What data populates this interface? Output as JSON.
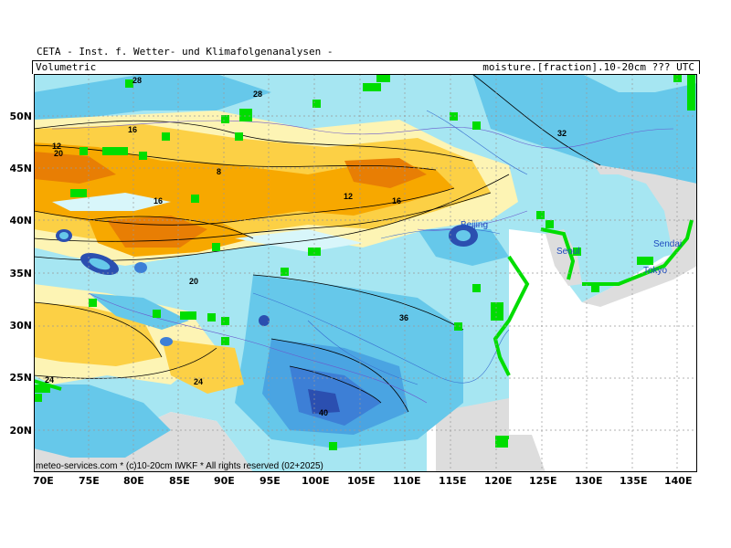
{
  "header": {
    "title": "CETA - Inst. f. Wetter- und Klimafolgenanalysen -",
    "left_label": "Volumetric",
    "right_label": "moisture.[fraction].10-20cm ??? UTC"
  },
  "footer": {
    "copyright": "meteo-services.com * (c)10-20cm IWKF * All rights reserved (02+2025)"
  },
  "axes": {
    "lat_labels": [
      "50N",
      "45N",
      "40N",
      "35N",
      "30N",
      "25N",
      "20N"
    ],
    "lon_labels": [
      "70E",
      "75E",
      "80E",
      "85E",
      "90E",
      "95E",
      "100E",
      "105E",
      "110E",
      "115E",
      "120E",
      "125E",
      "130E",
      "135E",
      "140E"
    ]
  },
  "cities": [
    "Beijing",
    "Seoul",
    "Sendai",
    "Tokyo"
  ],
  "contour_labels": [
    "28",
    "16",
    "20",
    "24",
    "28",
    "32",
    "12",
    "8",
    "16",
    "12",
    "16",
    "20",
    "24",
    "36",
    "40"
  ],
  "colors": {
    "very_dry": "#e87e04",
    "dry": "#f7a800",
    "mid_dry": "#fcd045",
    "light": "#fdf4b4",
    "pale_cyan": "#d8f6fa",
    "cyan": "#a6e6f2",
    "blue_light": "#66c8ea",
    "blue": "#4aa4e2",
    "blue_dark": "#3d7fd6",
    "navy": "#2b4fb0",
    "mask_green": "#00dd00",
    "land_gray": "#dddddd",
    "ocean_white": "#ffffff"
  }
}
